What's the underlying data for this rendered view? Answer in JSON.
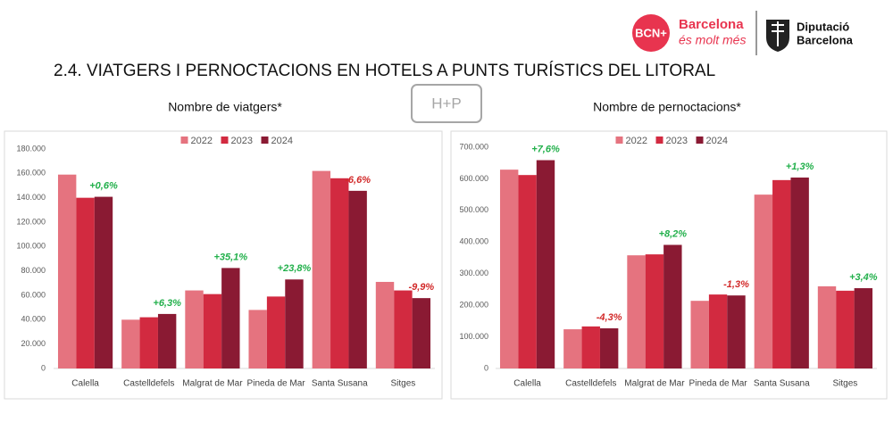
{
  "header": {
    "bcn_mark": "BCN+",
    "bcn_line1": "Barcelona",
    "bcn_line2": "és molt més",
    "dipu_line1": "Diputació",
    "dipu_line2": "Barcelona"
  },
  "title": "2.4. VIATGERS I PERNOCTACIONS EN HOTELS A PUNTS TURÍSTICS DEL LITORAL",
  "badge": "H+P",
  "chart_data": [
    {
      "type": "bar",
      "title": "Nombre de viatgers*",
      "categories": [
        "Calella",
        "Castelldefels",
        "Malgrat de Mar",
        "Pineda de Mar",
        "Santa Susana",
        "Sitges"
      ],
      "series": [
        {
          "name": "2022",
          "color": "#e5737f",
          "values": [
            159000,
            40000,
            64000,
            48000,
            162000,
            71000
          ]
        },
        {
          "name": "2023",
          "color": "#d22a40",
          "values": [
            140000,
            42000,
            61000,
            59000,
            156000,
            64000
          ]
        },
        {
          "name": "2024",
          "color": "#8a1a33",
          "values": [
            140800,
            44700,
            82400,
            73000,
            145700,
            57700
          ]
        }
      ],
      "changes": {
        "values": [
          0.6,
          6.3,
          35.1,
          23.8,
          -6.6,
          -9.9
        ],
        "value_labels": [
          "+0,6%",
          "+6,3%",
          "+35,1%",
          "+23,8%",
          "-6,6%",
          "-9,9%"
        ]
      },
      "ylim": [
        0,
        180000
      ],
      "yticks": [
        0,
        {
          "value": 20000,
          "label": "20.000"
        },
        {
          "value": 40000,
          "label": "40.000"
        },
        {
          "value": 60000,
          "label": "60.000"
        },
        {
          "value": 80000,
          "label": "80.000"
        },
        {
          "value": 100000,
          "label": "100.000"
        },
        {
          "value": 120000,
          "label": "120.000"
        },
        {
          "value": 140000,
          "label": "140.000"
        },
        {
          "value": 160000,
          "label": "160.000"
        },
        {
          "value": 180000,
          "label": "180.000"
        }
      ],
      "grid": false,
      "legend": "top"
    },
    {
      "type": "bar",
      "title": "Nombre de pernoctacions*",
      "categories": [
        "Calella",
        "Castelldefels",
        "Malgrat de Mar",
        "Pineda de Mar",
        "Santa Susana",
        "Sitges"
      ],
      "series": [
        {
          "name": "2022",
          "color": "#e5737f",
          "values": [
            629000,
            124000,
            358000,
            214000,
            550000,
            260000
          ]
        },
        {
          "name": "2023",
          "color": "#d22a40",
          "values": [
            612000,
            133000,
            361000,
            234000,
            596000,
            246000
          ]
        },
        {
          "name": "2024",
          "color": "#8a1a33",
          "values": [
            659000,
            127000,
            391000,
            231000,
            604000,
            254000
          ]
        }
      ],
      "changes": {
        "values": [
          7.6,
          -4.3,
          8.2,
          -1.3,
          1.3,
          3.4
        ],
        "value_labels": [
          "+7,6%",
          "-4,3%",
          "+8,2%",
          "-1,3%",
          "+1,3%",
          "+3,4%"
        ]
      },
      "ylim": [
        0,
        700000
      ],
      "yticks": [
        0,
        {
          "value": 100000,
          "label": "100.000"
        },
        {
          "value": 200000,
          "label": "200.000"
        },
        {
          "value": 300000,
          "label": "300.000"
        },
        {
          "value": 400000,
          "label": "400.000"
        },
        {
          "value": 500000,
          "label": "500.000"
        },
        {
          "value": 600000,
          "label": "600.000"
        },
        {
          "value": 700000,
          "label": "700.000"
        }
      ],
      "grid": false,
      "legend": "top"
    }
  ]
}
